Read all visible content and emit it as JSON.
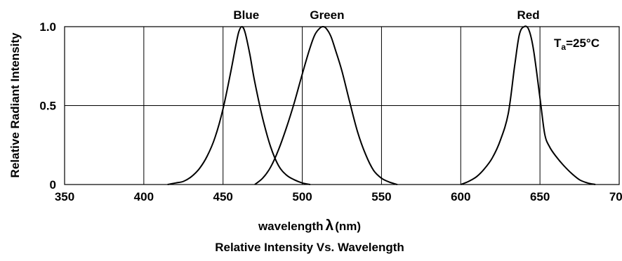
{
  "chart_data": {
    "type": "line",
    "title": "Relative Intensity Vs. Wavelength",
    "xlabel": "wavelength",
    "xlabel_symbol": "λ",
    "xlabel_unit": "(nm)",
    "ylabel": "Relative Radiant Intensity",
    "xlim": [
      350,
      700
    ],
    "ylim": [
      0,
      1.0
    ],
    "x_ticks": [
      350,
      400,
      450,
      500,
      550,
      600,
      650,
      700
    ],
    "x_tick_labels": [
      "350",
      "400",
      "450",
      "500",
      "550",
      "600",
      "650",
      "700"
    ],
    "y_ticks": [
      0,
      0.5,
      1.0
    ],
    "y_tick_labels": [
      "0",
      "0.5",
      "1.0"
    ],
    "grid": true,
    "annotation": {
      "text_main": "T",
      "text_sub": "a",
      "text_rest": "=25°C"
    },
    "series": [
      {
        "name": "Blue",
        "color": "#000000",
        "x": [
          415,
          420,
          425,
          430,
          435,
          440,
          445,
          450,
          455,
          458,
          460,
          462,
          464,
          467,
          470,
          475,
          480,
          485,
          490,
          495,
          500,
          505
        ],
        "y": [
          0.0,
          0.01,
          0.02,
          0.05,
          0.1,
          0.18,
          0.3,
          0.48,
          0.72,
          0.88,
          0.97,
          1.0,
          0.96,
          0.82,
          0.65,
          0.42,
          0.24,
          0.12,
          0.06,
          0.03,
          0.01,
          0.0
        ]
      },
      {
        "name": "Green",
        "color": "#000000",
        "x": [
          470,
          475,
          480,
          485,
          490,
          495,
          500,
          505,
          508,
          511,
          513,
          515,
          518,
          521,
          525,
          530,
          535,
          540,
          545,
          550,
          555,
          560
        ],
        "y": [
          0.0,
          0.04,
          0.11,
          0.22,
          0.36,
          0.52,
          0.7,
          0.87,
          0.95,
          0.99,
          1.0,
          0.99,
          0.94,
          0.85,
          0.72,
          0.52,
          0.33,
          0.19,
          0.09,
          0.04,
          0.015,
          0.0
        ]
      },
      {
        "name": "Red",
        "color": "#000000",
        "x": [
          600,
          605,
          610,
          615,
          620,
          625,
          630,
          634,
          637,
          640,
          643,
          646,
          650,
          653,
          656,
          660,
          665,
          670,
          675,
          680,
          685
        ],
        "y": [
          0.0,
          0.02,
          0.05,
          0.1,
          0.17,
          0.28,
          0.45,
          0.75,
          0.95,
          1.0,
          0.98,
          0.85,
          0.55,
          0.32,
          0.24,
          0.18,
          0.12,
          0.07,
          0.03,
          0.01,
          0.0
        ]
      }
    ]
  }
}
